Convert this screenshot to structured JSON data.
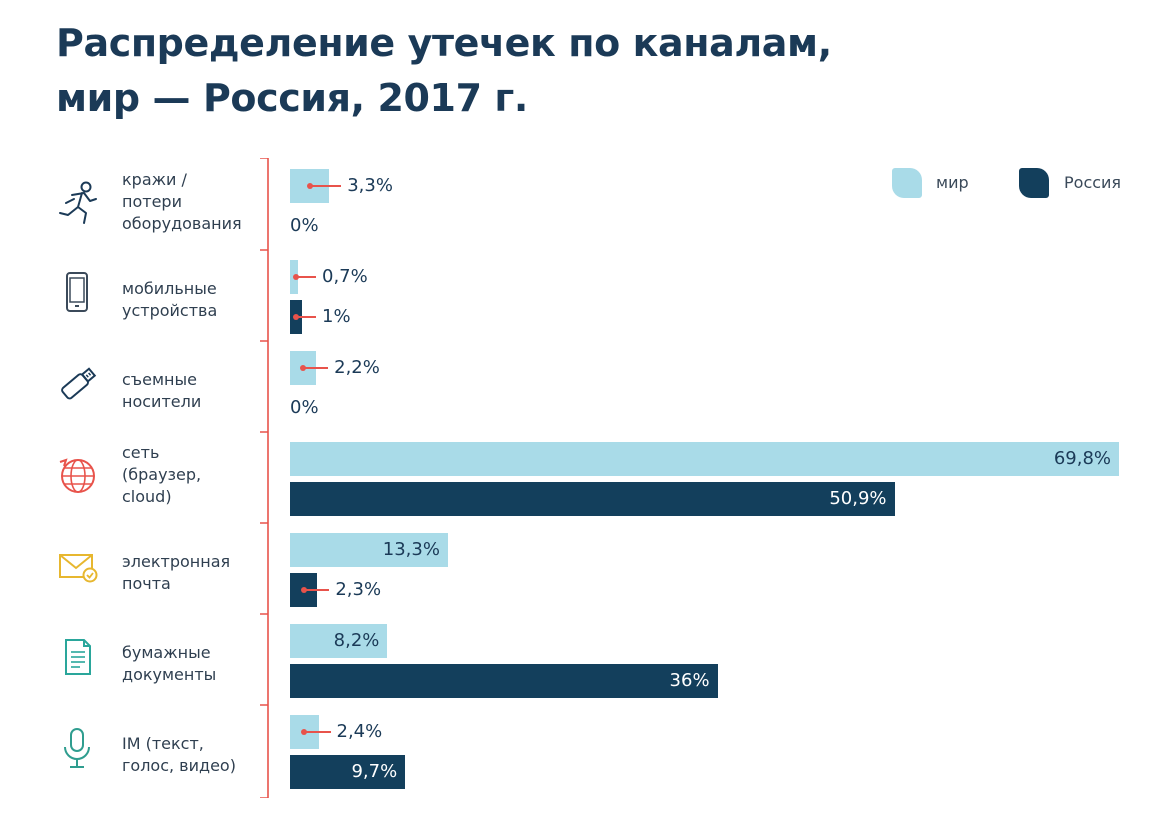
{
  "title_lines": [
    "Распределение утечек по каналам,",
    "мир — Россия, 2017 г."
  ],
  "colors": {
    "world": "#a9dbe8",
    "russia": "#133f5c",
    "accent": "#e8534b"
  },
  "chart_data": {
    "type": "bar",
    "orientation": "horizontal",
    "title": "Распределение утечек по каналам, мир — Россия, 2017 г.",
    "legend_position": "top-right",
    "xlim": [
      0,
      69.8
    ],
    "categories": [
      "кражи / потери оборудования",
      "мобильные устройства",
      "съемные носители",
      "сеть (браузер, cloud)",
      "электронная почта",
      "бумажные документы",
      "IM (текст, голос, видео)"
    ],
    "category_lines": [
      "кражи /\nпотери\nоборудования",
      "мобильные\nустройства",
      "съемные\nносители",
      "сеть\n(браузер,\ncloud)",
      "электронная\nпочта",
      "бумажные\nдокументы",
      "IM (текст,\nголос, видео)"
    ],
    "icons": [
      "running-person-icon",
      "smartphone-icon",
      "usb-drive-icon",
      "globe-icon",
      "envelope-icon",
      "document-icon",
      "microphone-icon"
    ],
    "series": [
      {
        "name": "мир",
        "key": "world",
        "values": [
          3.3,
          0.7,
          2.2,
          69.8,
          13.3,
          8.2,
          2.4
        ],
        "labels": [
          "3,3%",
          "0,7%",
          "2,2%",
          "69,8%",
          "13,3%",
          "8,2%",
          "2,4%"
        ]
      },
      {
        "name": "Россия",
        "key": "russia",
        "values": [
          0,
          1,
          0,
          50.9,
          2.3,
          36,
          9.7
        ],
        "labels": [
          "0%",
          "1%",
          "0%",
          "50,9%",
          "2,3%",
          "36%",
          "9,7%"
        ]
      }
    ]
  }
}
